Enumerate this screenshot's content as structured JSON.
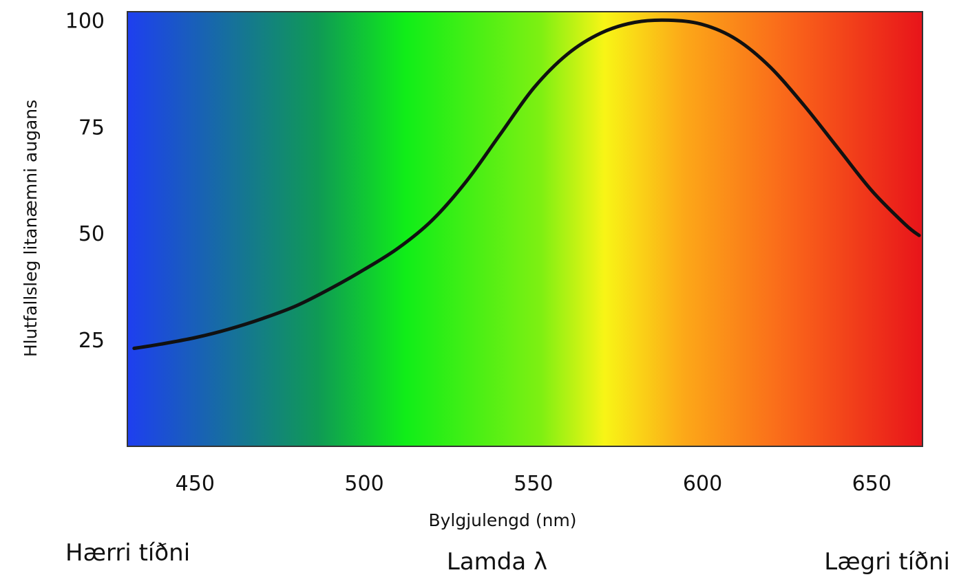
{
  "chart_data": {
    "type": "line",
    "xlabel": "Bylgjulengd (nm)",
    "ylabel": "Hlutfallsleg litanæmni augans",
    "xlim": [
      430,
      665
    ],
    "ylim": [
      0,
      102
    ],
    "x_ticks": [
      450,
      500,
      550,
      600,
      650
    ],
    "y_ticks": [
      25,
      50,
      75,
      100
    ],
    "grid": false,
    "legend": "none",
    "background": "visible spectrum gradient (blue to red)",
    "line_color": "#111111",
    "series": [
      {
        "x": [
          432,
          440,
          450,
          460,
          470,
          480,
          490,
          500,
          510,
          520,
          530,
          540,
          550,
          560,
          570,
          580,
          590,
          600,
          610,
          620,
          630,
          640,
          650,
          660,
          664
        ],
        "values": [
          23,
          24,
          25.5,
          27.5,
          30,
          33,
          37,
          41.5,
          46.5,
          53,
          62,
          73,
          84,
          92,
          97,
          99.5,
          100,
          99,
          95.5,
          89,
          80,
          70,
          60,
          52,
          49.5
        ]
      }
    ],
    "annotations": {
      "left": "Hærri tíðni",
      "center": "Lamda λ",
      "right": "Lægri tíðni"
    }
  },
  "colors": {
    "spectrum": [
      "#1e3ff0",
      "#0f9a55",
      "#10ee18",
      "#7ef012",
      "#f8f516",
      "#fca818",
      "#f9621a",
      "#e8141a"
    ],
    "frame": "#333333"
  }
}
